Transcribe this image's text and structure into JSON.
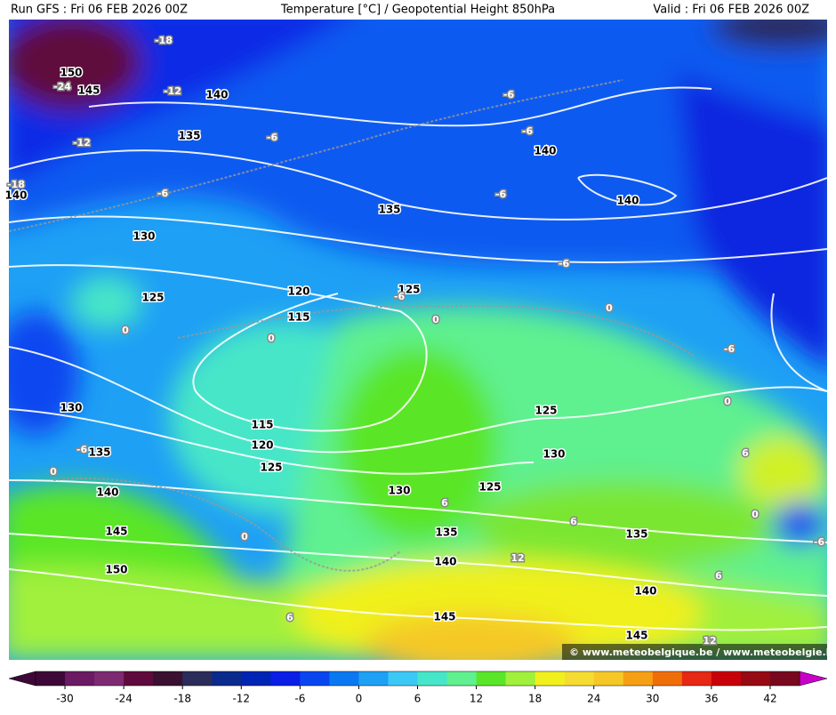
{
  "header": {
    "run": "Run GFS : Fri 06 FEB 2026 00Z",
    "title": "Temperature [°C] / Geopotential Height 850hPa",
    "valid": "Valid : Fri 06 FEB 2026 00Z"
  },
  "map": {
    "height_labels": [
      150,
      145,
      140,
      135,
      140,
      130,
      125,
      120,
      115,
      135,
      140,
      140,
      125,
      130,
      115,
      120,
      125,
      135,
      140,
      145,
      150,
      130,
      125,
      130,
      125,
      135,
      140,
      135,
      140,
      145,
      145
    ],
    "temperature_labels": [
      -18,
      -24,
      -12,
      -12,
      -6,
      -18,
      -6,
      0,
      0,
      0,
      -6,
      -6,
      -6,
      -6,
      -6,
      0,
      -6,
      0,
      6,
      0,
      -6,
      -6,
      0,
      0,
      6,
      6,
      6,
      12,
      6,
      12
    ],
    "watermark": "© www.meteobelgique.be / www.meteobelgie.be"
  },
  "colorbar": {
    "range": [
      -33,
      45
    ],
    "ticks": [
      -30,
      -24,
      -18,
      -12,
      -6,
      0,
      6,
      12,
      18,
      24,
      30,
      36,
      42
    ],
    "colors": [
      "#3d0838",
      "#6b1a63",
      "#7e2a73",
      "#5e0a3c",
      "#3a1030",
      "#2c2c5a",
      "#0a2a8c",
      "#0024b4",
      "#0a1ee6",
      "#0a46f0",
      "#0a78f0",
      "#1ea0f5",
      "#3cc8f5",
      "#46e6c8",
      "#5ff090",
      "#5ae628",
      "#a0f03c",
      "#f0f01e",
      "#f5dc32",
      "#f5c828",
      "#f5a014",
      "#f06e0a",
      "#e62814",
      "#c8000a",
      "#960a14",
      "#78081e"
    ],
    "low_color": "#3d0838",
    "high_color": "#c800c8"
  }
}
